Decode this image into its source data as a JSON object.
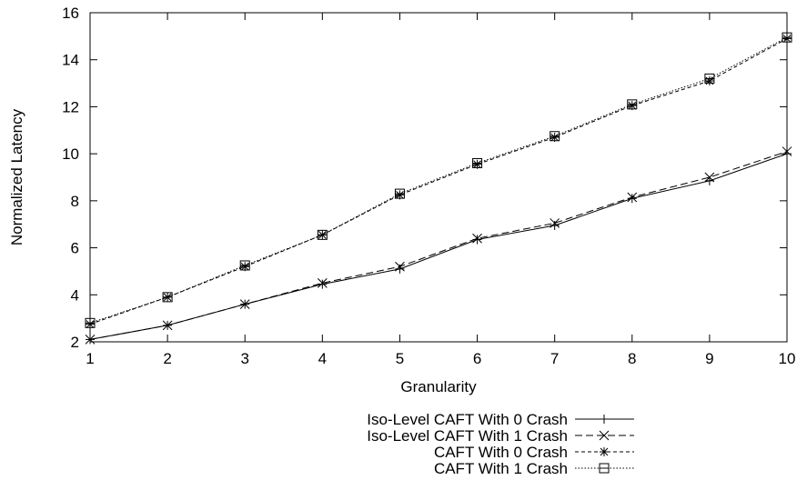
{
  "chart_data": {
    "type": "line",
    "xlabel": "Granularity",
    "ylabel": "Normalized Latency",
    "xlim": [
      1,
      10
    ],
    "ylim": [
      2,
      16
    ],
    "xticks": [
      1,
      2,
      3,
      4,
      5,
      6,
      7,
      8,
      9,
      10
    ],
    "yticks": [
      2,
      4,
      6,
      8,
      10,
      12,
      14,
      16
    ],
    "grid": false,
    "legend_position": "bottom-center",
    "x": [
      1,
      2,
      3,
      4,
      5,
      6,
      7,
      8,
      9,
      10
    ],
    "series": [
      {
        "name": "Iso-Level CAFT With 0 Crash",
        "marker": "plus",
        "dash": "solid",
        "values": [
          2.1,
          2.7,
          3.6,
          4.45,
          5.1,
          6.35,
          6.95,
          8.1,
          8.85,
          10.0
        ]
      },
      {
        "name": "Iso-Level CAFT With 1 Crash",
        "marker": "cross",
        "dash": "dashed",
        "values": [
          2.1,
          2.7,
          3.6,
          4.5,
          5.2,
          6.4,
          7.05,
          8.15,
          9.0,
          10.1
        ]
      },
      {
        "name": "CAFT With 0 Crash",
        "marker": "star",
        "dash": "short-dashed",
        "values": [
          2.75,
          3.9,
          5.2,
          6.55,
          8.25,
          9.55,
          10.7,
          12.05,
          13.1,
          14.9
        ]
      },
      {
        "name": "CAFT With 1 Crash",
        "marker": "square",
        "dash": "dotted",
        "values": [
          2.8,
          3.9,
          5.25,
          6.55,
          8.3,
          9.6,
          10.75,
          12.1,
          13.2,
          14.95
        ]
      }
    ]
  }
}
